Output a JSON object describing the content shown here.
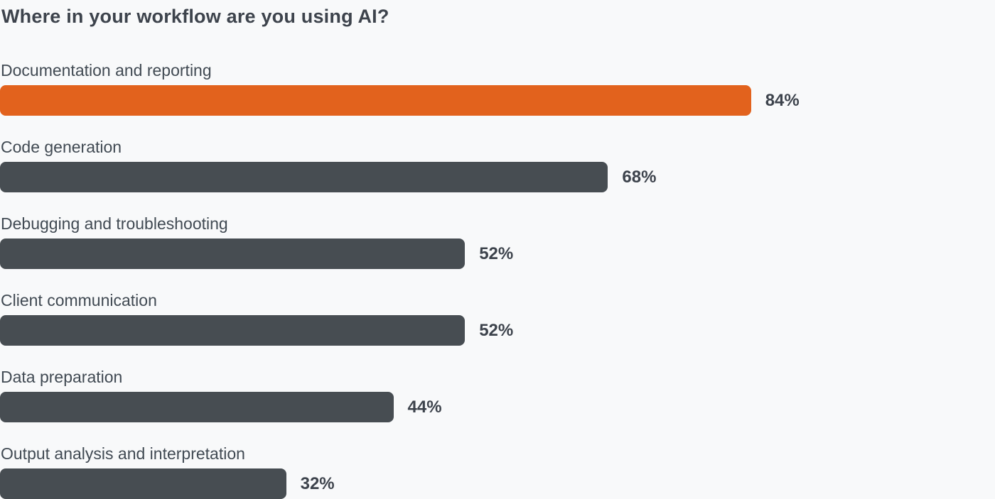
{
  "chart_data": {
    "type": "bar",
    "orientation": "horizontal",
    "title": "Where in your workflow are you using AI?",
    "categories": [
      "Documentation and reporting",
      "Code generation",
      "Debugging and troubleshooting",
      "Client communication",
      "Data preparation",
      "Output analysis and interpretation"
    ],
    "values": [
      84,
      68,
      52,
      52,
      44,
      32
    ],
    "value_suffix": "%",
    "value_labels": [
      "84%",
      "68%",
      "52%",
      "52%",
      "44%",
      "32%"
    ],
    "xlim": [
      0,
      100
    ],
    "grid": false,
    "legend": false,
    "highlight_index": 0,
    "colors": {
      "highlight_bar": "#e2621d",
      "default_bar": "#474d52",
      "background": "#f8f9fa",
      "text": "#3d434c"
    }
  }
}
